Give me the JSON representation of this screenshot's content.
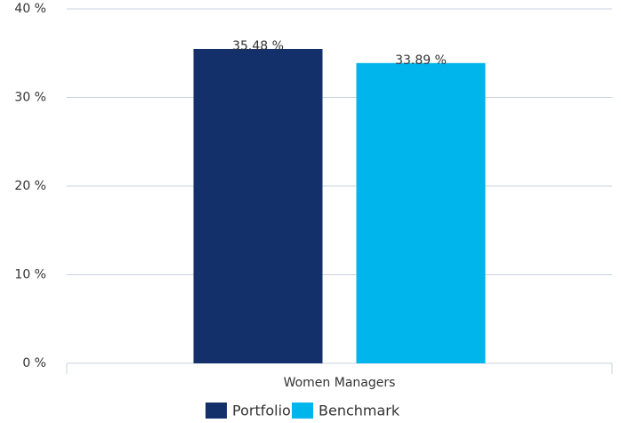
{
  "chart_data": {
    "type": "bar",
    "categories": [
      "Women Managers"
    ],
    "series": [
      {
        "name": "Portfolio",
        "color": "#13306a",
        "values": [
          35.48
        ],
        "value_labels": [
          "35.48 %"
        ]
      },
      {
        "name": "Benchmark",
        "color": "#00b4ec",
        "values": [
          33.89
        ],
        "value_labels": [
          "33.89 %"
        ]
      }
    ],
    "ylim": [
      0,
      40
    ],
    "yticks": [
      {
        "value": 0,
        "label": "0 %"
      },
      {
        "value": 10,
        "label": "10 %"
      },
      {
        "value": 20,
        "label": "20 %"
      },
      {
        "value": 30,
        "label": "30 %"
      },
      {
        "value": 40,
        "label": "40 %"
      }
    ],
    "grid": true,
    "legend": "bottom"
  }
}
